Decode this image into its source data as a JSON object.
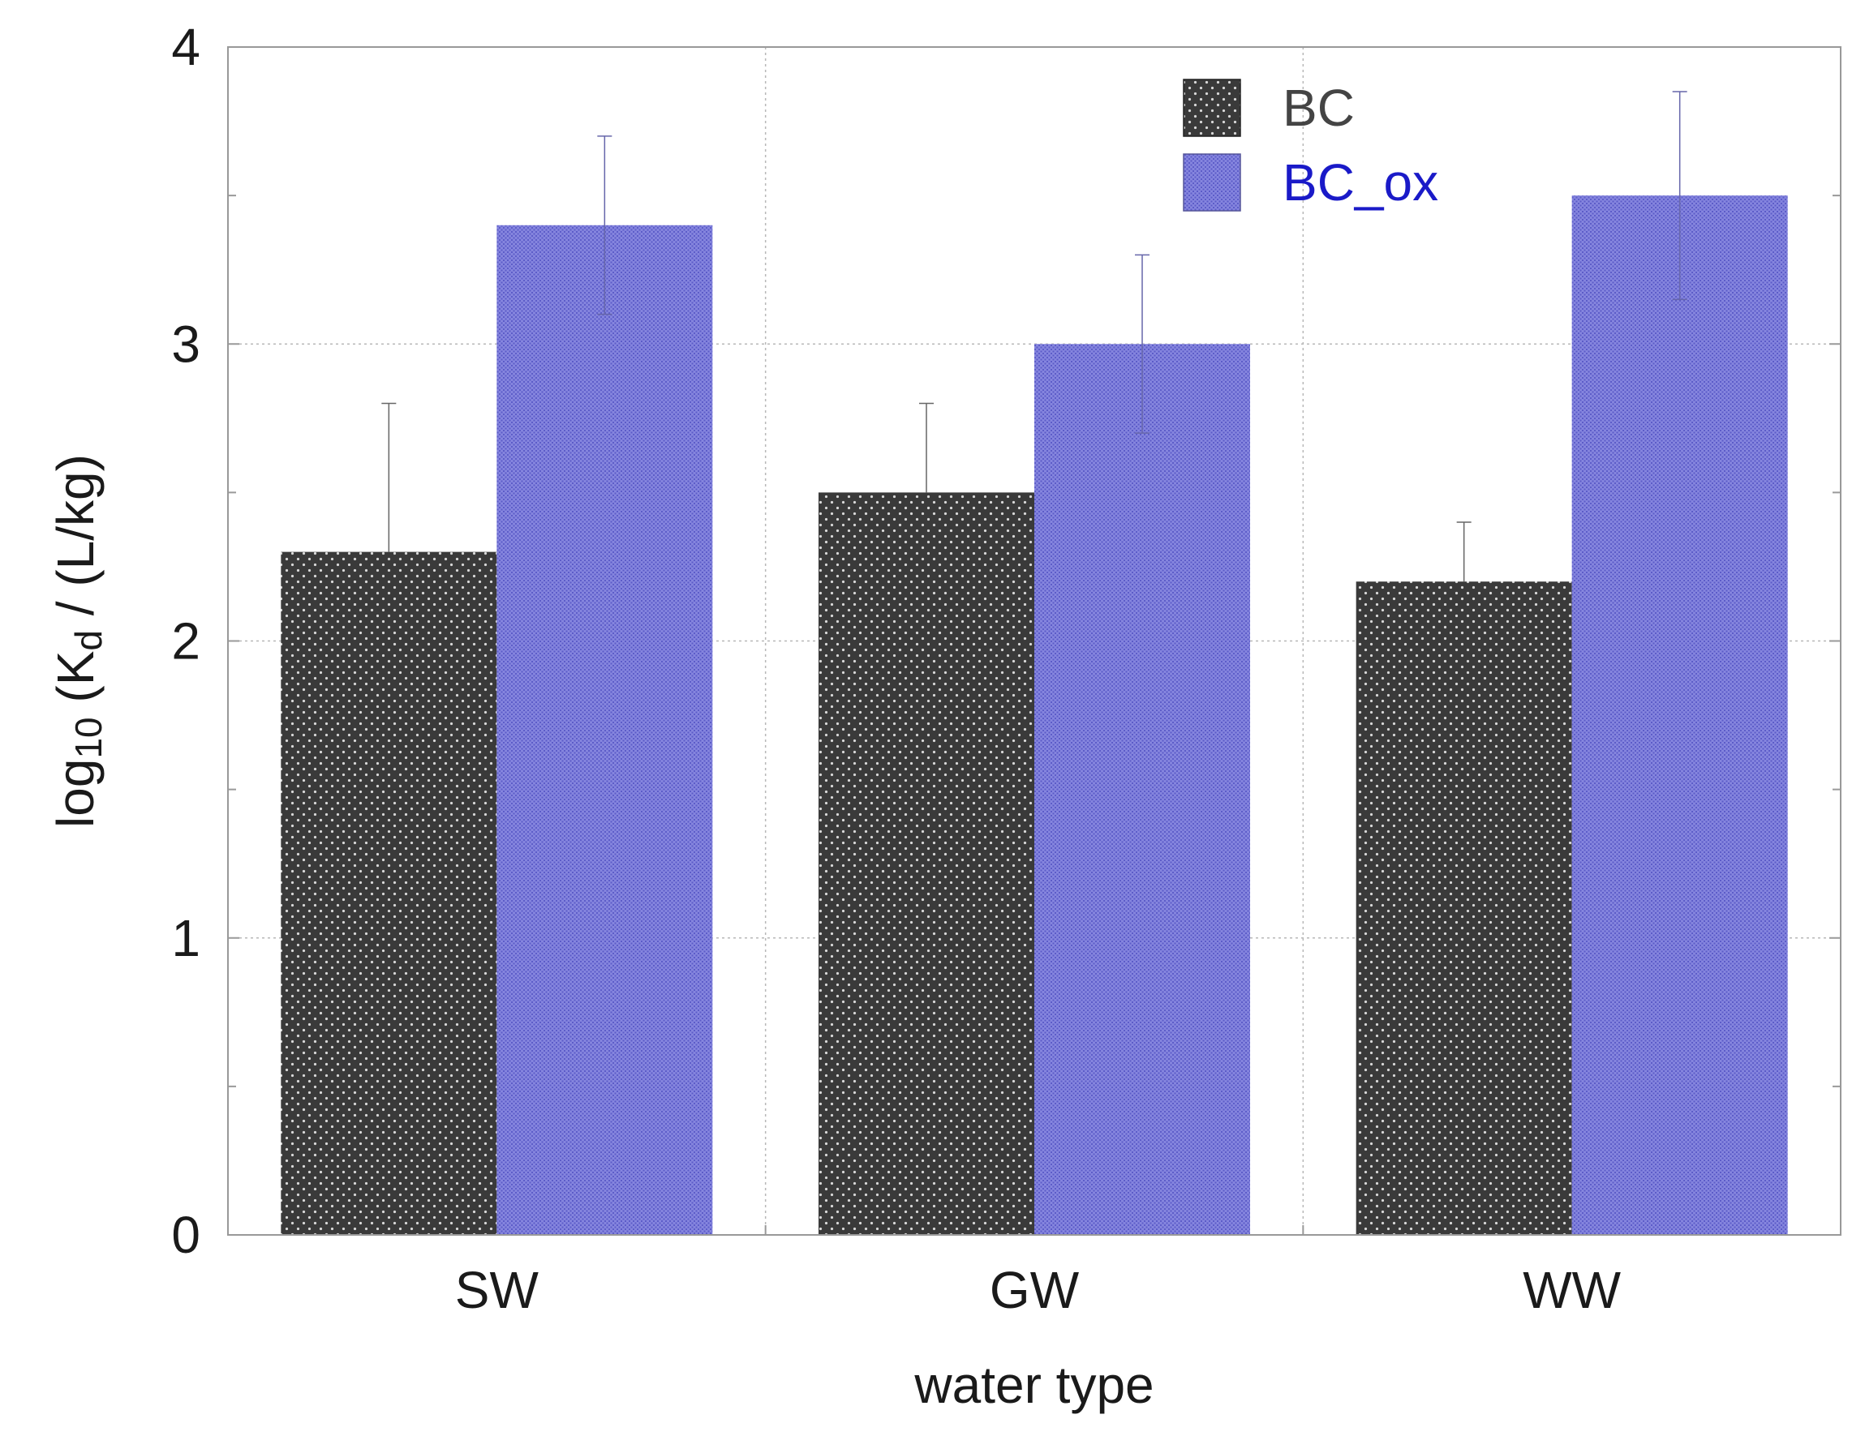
{
  "chart_data": {
    "type": "bar",
    "title": "",
    "xlabel": "water type",
    "ylabel": {
      "prefix": "log",
      "log_sub": "10",
      "mid": " (K",
      "k_sub": "d",
      "suffix": " / (L/kg)"
    },
    "categories": [
      "SW",
      "GW",
      "WW"
    ],
    "ylim": [
      0,
      4
    ],
    "yticks": [
      "0",
      "1",
      "2",
      "3",
      "4"
    ],
    "grid": true,
    "legend_position": "top-right",
    "series": [
      {
        "name": "BC",
        "color": "#3a3a3a",
        "text_color": "#444444",
        "values": [
          2.3,
          2.5,
          2.2
        ],
        "errors_plus": [
          0.5,
          0.3,
          0.2
        ]
      },
      {
        "name": "BC_ox",
        "color": "#7b7bd9",
        "text_color": "#1a1ac8",
        "values": [
          3.4,
          3.0,
          3.5
        ],
        "errors": [
          0.3,
          0.3,
          0.35
        ]
      }
    ]
  }
}
